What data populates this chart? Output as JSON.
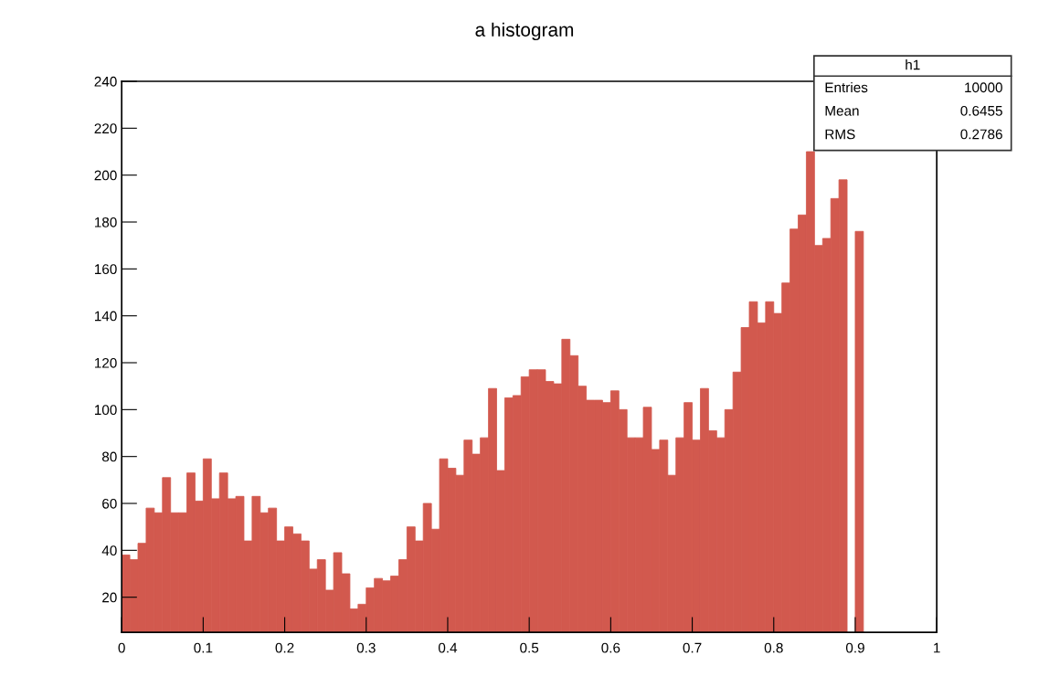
{
  "chart_data": {
    "type": "histogram",
    "title": "a histogram",
    "bins": [
      0,
      0.01,
      0.02,
      0.03,
      0.04,
      0.05,
      0.06,
      0.07,
      0.08,
      0.09,
      0.1,
      0.11,
      0.12,
      0.13,
      0.14,
      0.15,
      0.16,
      0.17,
      0.18,
      0.19,
      0.2,
      0.21,
      0.22,
      0.23,
      0.24,
      0.25,
      0.26,
      0.27,
      0.28,
      0.29,
      0.3,
      0.31,
      0.32,
      0.33,
      0.34,
      0.35,
      0.36,
      0.37,
      0.38,
      0.39,
      0.4,
      0.41,
      0.42,
      0.43,
      0.44,
      0.45,
      0.46,
      0.47,
      0.48,
      0.49,
      0.5,
      0.51,
      0.52,
      0.53,
      0.54,
      0.55,
      0.56,
      0.57,
      0.58,
      0.59,
      0.6,
      0.61,
      0.62,
      0.63,
      0.64,
      0.65,
      0.66,
      0.67,
      0.68,
      0.69,
      0.7,
      0.71,
      0.72,
      0.73,
      0.74,
      0.75,
      0.76,
      0.77,
      0.78,
      0.79,
      0.8,
      0.81,
      0.82,
      0.83,
      0.84,
      0.85,
      0.86,
      0.87,
      0.88,
      0.89,
      0.9,
      0.91,
      0.92,
      0.93,
      0.94,
      0.95,
      0.96,
      0.97,
      0.98,
      0.99,
      1
    ],
    "values": [
      38,
      36,
      43,
      58,
      56,
      71,
      56,
      56,
      73,
      61,
      79,
      62,
      73,
      62,
      63,
      44,
      63,
      56,
      58,
      44,
      50,
      47,
      44,
      32,
      36,
      23,
      39,
      30,
      15,
      17,
      24,
      28,
      27,
      29,
      36,
      50,
      44,
      60,
      49,
      79,
      75,
      72,
      87,
      81,
      88,
      109,
      74,
      105,
      106,
      114,
      117,
      117,
      112,
      111,
      130,
      123,
      110,
      104,
      104,
      103,
      108,
      100,
      88,
      88,
      101,
      83,
      87,
      72,
      88,
      103,
      87,
      109,
      91,
      88,
      100,
      116,
      135,
      146,
      137,
      146,
      141,
      154,
      177,
      183,
      210,
      170,
      173,
      190,
      198,
      null,
      176,
      null,
      null,
      null,
      null,
      null,
      null,
      null,
      null,
      null
    ],
    "color": "#d2594e",
    "xlim": [
      0,
      1
    ],
    "ylim": [
      5,
      240
    ],
    "xticks": [
      0,
      0.1,
      0.2,
      0.3,
      0.4,
      0.5,
      0.6,
      0.7,
      0.8,
      0.9,
      1
    ],
    "yticks": [
      20,
      40,
      60,
      80,
      100,
      120,
      140,
      160,
      180,
      200,
      220,
      240
    ],
    "grid": false,
    "annotations": [
      "h1",
      "Entries",
      "10000",
      "Mean",
      "0.6455",
      "RMS",
      "0.2786"
    ]
  }
}
